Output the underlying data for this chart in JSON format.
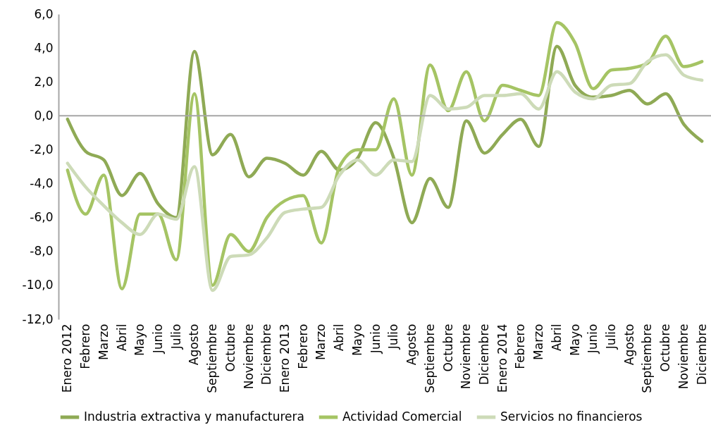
{
  "chart_data": {
    "type": "line",
    "categories": [
      "Enero 2012",
      "Febrero",
      "Marzo",
      "Abril",
      "Mayo",
      "Junio",
      "Julio",
      "Agosto",
      "Septiembre",
      "Octubre",
      "Noviembre",
      "Diciembre",
      "Enero 2013",
      "Febrero",
      "Marzo",
      "Abril",
      "Mayo",
      "Junio",
      "Julio",
      "Agosto",
      "Septiembre",
      "Octubre",
      "Noviembre",
      "Diciembre",
      "Enero 2014",
      "Febrero",
      "Marzo",
      "Abril",
      "Mayo",
      "Junio",
      "Julio",
      "Agosto",
      "Septiembre",
      "Octubre",
      "Noviembre",
      "Diciembre"
    ],
    "series": [
      {
        "name": "Industria extractiva y manufacturera",
        "color": "#8faa55",
        "values": [
          -0.2,
          -2.1,
          -2.6,
          -4.7,
          -3.4,
          -5.2,
          -6.0,
          3.8,
          -2.3,
          -1.1,
          -3.6,
          -2.5,
          -2.8,
          -3.5,
          -2.1,
          -3.2,
          -2.5,
          -0.4,
          -2.5,
          -6.3,
          -3.7,
          -5.4,
          -0.3,
          -2.2,
          -1.1,
          -0.2,
          -1.8,
          4.1,
          1.8,
          1.1,
          1.2,
          1.5,
          0.7,
          1.3,
          -0.5,
          -1.5
        ]
      },
      {
        "name": "Actividad Comercial",
        "color": "#a5c464",
        "values": [
          -3.2,
          -5.8,
          -3.5,
          -10.2,
          -5.8,
          -5.8,
          -8.5,
          1.3,
          -10.0,
          -7.0,
          -8.0,
          -6.0,
          -5.0,
          -4.7,
          -7.5,
          -3.0,
          -2.0,
          -2.0,
          1.0,
          -3.5,
          3.0,
          0.3,
          2.6,
          -0.3,
          1.8,
          1.5,
          1.2,
          5.5,
          4.3,
          1.6,
          2.7,
          2.8,
          3.1,
          4.7,
          2.9,
          3.2
        ]
      },
      {
        "name": "Servicios no financieros",
        "color": "#cddbb8",
        "values": [
          -2.8,
          -4.2,
          -5.3,
          -6.3,
          -7.0,
          -5.8,
          -6.1,
          -3.0,
          -10.3,
          -8.3,
          -8.2,
          -7.2,
          -5.7,
          -5.5,
          -5.4,
          -3.5,
          -2.6,
          -3.5,
          -2.6,
          -2.7,
          1.2,
          0.4,
          0.5,
          1.2,
          1.2,
          1.3,
          0.4,
          2.6,
          1.4,
          1.0,
          1.8,
          1.9,
          3.2,
          3.6,
          2.4,
          2.1
        ]
      }
    ],
    "ylim": [
      -12,
      6
    ],
    "yticks": [
      {
        "value": -12,
        "label": "-12,0"
      },
      {
        "value": -10,
        "label": "-10,0"
      },
      {
        "value": -8,
        "label": "-8,0"
      },
      {
        "value": -6,
        "label": "-6,0"
      },
      {
        "value": -4,
        "label": "-4,0"
      },
      {
        "value": -2,
        "label": "-2,0"
      },
      {
        "value": 0,
        "label": "0,0"
      },
      {
        "value": 2,
        "label": "2,0"
      },
      {
        "value": 4,
        "label": "4,0"
      },
      {
        "value": 6,
        "label": "6,0"
      }
    ],
    "ref_lines": [
      {
        "axis": "y",
        "value": 0,
        "color": "#a6a6a6"
      }
    ],
    "legend": "bottom",
    "grid": false,
    "marker": "none",
    "line_style": "solid"
  }
}
